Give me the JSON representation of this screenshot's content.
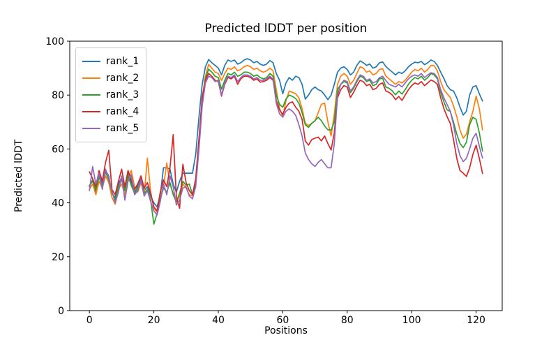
{
  "title": "Predicted lDDT per position",
  "x_axis": {
    "label": "Positions",
    "ticks": [
      0,
      20,
      40,
      60,
      80,
      100,
      120
    ]
  },
  "y_axis": {
    "label": "Predicted lDDT",
    "ticks": [
      0,
      20,
      40,
      60,
      80,
      100
    ]
  },
  "legend": {
    "position": "upper left",
    "items": [
      {
        "label": "rank_1",
        "color": "#1f77b4"
      },
      {
        "label": "rank_2",
        "color": "#ff7f0e"
      },
      {
        "label": "rank_3",
        "color": "#2ca02c"
      },
      {
        "label": "rank_4",
        "color": "#d62728"
      },
      {
        "label": "rank_5",
        "color": "#9467bd"
      }
    ]
  },
  "chart_data": {
    "type": "line",
    "title": "Predicted lDDT per position",
    "xlabel": "Positions",
    "ylabel": "Predicted lDDT",
    "x_description": "integer positions 0..122 (x = array index)",
    "xlim": [
      -6.1,
      128.1
    ],
    "ylim": [
      0,
      100
    ],
    "grid": false,
    "series": [
      {
        "name": "rank_1",
        "color": "#1f77b4",
        "values": [
          46,
          48.5,
          44,
          50.5,
          47,
          52,
          50,
          43.5,
          42,
          47,
          49.5,
          45,
          51,
          47.5,
          44,
          46.5,
          49,
          44.5,
          46,
          42.5,
          40,
          38.5,
          43,
          53,
          53,
          52.5,
          47,
          44,
          48,
          51,
          51,
          51,
          51,
          58,
          72,
          84,
          90.5,
          93.2,
          92,
          91,
          90,
          87.5,
          91,
          93,
          92.5,
          93,
          91.5,
          92,
          93,
          93.5,
          93,
          92,
          92.5,
          91.5,
          91,
          91.5,
          92.8,
          92,
          88,
          85.5,
          80.5,
          84.5,
          86.5,
          85.5,
          87,
          86.5,
          84,
          78.5,
          80,
          82,
          83,
          82,
          81.5,
          80,
          78.3,
          80,
          84,
          88.5,
          90,
          90.5,
          89.5,
          87.5,
          88.5,
          91,
          92.7,
          92,
          91,
          91.5,
          90,
          90.5,
          92,
          92.3,
          90.6,
          89.5,
          88.5,
          87.5,
          88.5,
          88,
          89,
          90.5,
          91.5,
          92.2,
          92,
          92.5,
          91.3,
          92,
          93,
          92.5,
          91,
          88.5,
          86.2,
          83.5,
          82,
          81.5,
          79,
          75.5,
          72.6,
          74,
          80,
          83,
          83.5,
          80.5,
          77.8
        ]
      },
      {
        "name": "rank_2",
        "color": "#ff7f0e",
        "values": [
          45,
          47,
          43,
          48,
          45.5,
          50,
          47.5,
          42,
          39.5,
          45,
          47,
          43,
          49,
          52,
          46,
          44,
          47.5,
          43,
          56.6,
          44,
          38,
          36.5,
          42,
          46,
          54.8,
          47,
          43.5,
          40,
          42.5,
          47,
          45.5,
          43,
          42.5,
          48,
          63,
          79,
          87,
          91.4,
          90,
          88.5,
          88,
          85.4,
          88,
          90,
          89.5,
          90.5,
          89,
          89.5,
          90.5,
          91,
          90.5,
          89.5,
          90,
          89,
          88.5,
          89,
          90,
          89,
          82,
          75,
          72,
          78,
          81.5,
          81,
          80.5,
          79,
          75,
          69.5,
          68.7,
          69.5,
          70.5,
          73.5,
          76.6,
          77,
          70,
          64.8,
          73,
          84,
          87,
          88,
          87,
          84,
          85.5,
          88,
          90.5,
          90,
          88.5,
          89,
          87.5,
          88,
          89.5,
          89.8,
          87,
          86,
          85,
          84,
          85,
          84.5,
          85.5,
          87,
          88.5,
          89.5,
          89,
          90,
          88.5,
          89.5,
          91,
          90.9,
          89,
          85,
          82,
          80.5,
          79.1,
          76,
          72,
          67,
          64,
          65.5,
          70,
          74,
          79.6,
          75,
          67.1
        ]
      },
      {
        "name": "rank_3",
        "color": "#2ca02c",
        "values": [
          46.5,
          48,
          45,
          49.5,
          46,
          51.5,
          48.5,
          44,
          41,
          46,
          48.5,
          44.5,
          50,
          46.5,
          43.5,
          45.5,
          48,
          43.5,
          45,
          41,
          32.1,
          36,
          41.5,
          45.5,
          44,
          47.5,
          43,
          40.5,
          43.5,
          48,
          46.5,
          47,
          43,
          47,
          61,
          77,
          86,
          89.6,
          88.5,
          87,
          86.5,
          82.2,
          85.5,
          88,
          87.5,
          88.5,
          87,
          87.5,
          88.5,
          88.5,
          88,
          87,
          87.5,
          86.5,
          86,
          86.5,
          88,
          87,
          80,
          76.5,
          75.5,
          78.5,
          80,
          79.5,
          78.7,
          77,
          73.5,
          69,
          68,
          69.5,
          70.5,
          71.8,
          70.5,
          68.5,
          67.1,
          67,
          70,
          82,
          84,
          85,
          84.5,
          80.9,
          82.5,
          85,
          87,
          86.5,
          85,
          85.5,
          83.5,
          84,
          86,
          86.3,
          83,
          82.5,
          81.5,
          80.1,
          81.5,
          80.4,
          82,
          84,
          85.5,
          86.5,
          86,
          87,
          85.5,
          86.5,
          88,
          87.5,
          86,
          81,
          77.5,
          74.5,
          73.9,
          70,
          65.5,
          62,
          60.5,
          62.5,
          69,
          71.8,
          71,
          66,
          59.2
        ]
      },
      {
        "name": "rank_4",
        "color": "#d62728",
        "values": [
          51.5,
          49,
          46,
          52,
          48,
          55,
          59.5,
          45,
          43,
          48,
          52.5,
          46,
          52,
          48.5,
          45,
          47,
          50,
          45.5,
          47.5,
          43.5,
          38.5,
          37,
          44,
          48.5,
          46,
          53,
          65.3,
          42,
          38,
          54.3,
          47.5,
          44.5,
          43,
          49,
          64,
          79,
          85.5,
          88,
          87,
          85.5,
          85,
          79.6,
          84,
          86.5,
          86,
          87,
          84,
          86,
          87,
          87,
          86.5,
          85.5,
          86,
          84.8,
          85,
          85.5,
          86.5,
          85.5,
          78,
          74.5,
          72.8,
          75.5,
          77,
          77.5,
          75.5,
          74,
          71,
          63,
          61.4,
          63.5,
          64,
          64.4,
          63,
          64.8,
          62,
          59.6,
          66,
          79,
          82,
          83.5,
          83,
          79.1,
          81,
          83.5,
          85.5,
          85,
          83.5,
          84,
          82,
          82.5,
          84,
          84.5,
          81.5,
          81,
          80,
          78.3,
          79.5,
          78,
          80,
          82,
          83.5,
          84.5,
          84,
          85,
          83.5,
          84.5,
          85.6,
          85,
          84,
          79,
          75,
          72,
          69.5,
          63.5,
          56.5,
          52,
          51,
          49.8,
          53,
          58,
          61.4,
          56.5,
          50.9
        ]
      },
      {
        "name": "rank_5",
        "color": "#9467bd",
        "values": [
          44.5,
          53.5,
          47,
          51,
          45,
          52.5,
          49,
          44.5,
          40,
          44,
          50,
          41,
          48,
          50.5,
          43,
          44.5,
          48.5,
          42.5,
          44.5,
          40.5,
          37,
          35.5,
          40.5,
          47,
          43,
          50,
          46,
          39.2,
          41,
          45.5,
          46,
          42.5,
          41.5,
          46,
          60,
          76,
          84.5,
          87,
          86.5,
          85,
          85.5,
          80,
          84.5,
          87,
          86.5,
          87.5,
          85,
          86.5,
          87.5,
          87.5,
          87,
          86,
          86.5,
          85.5,
          85.5,
          86,
          87,
          86,
          77,
          73,
          71.8,
          74,
          74.9,
          74,
          72.5,
          69,
          64.8,
          58.5,
          56.1,
          54.5,
          53.5,
          55,
          56.1,
          54.5,
          53,
          53,
          62,
          80,
          84,
          85.5,
          85,
          81.5,
          83,
          85.5,
          87.5,
          87,
          85.5,
          86,
          84.5,
          85,
          86.5,
          87,
          85.4,
          84,
          83.5,
          83,
          84,
          83,
          84.5,
          86,
          87,
          87.5,
          87,
          88,
          86.5,
          87.5,
          88.3,
          88,
          86.5,
          82,
          79,
          76.5,
          74,
          69,
          62,
          57.5,
          55.3,
          56.5,
          60,
          64,
          65.8,
          61,
          56.6
        ]
      }
    ]
  }
}
